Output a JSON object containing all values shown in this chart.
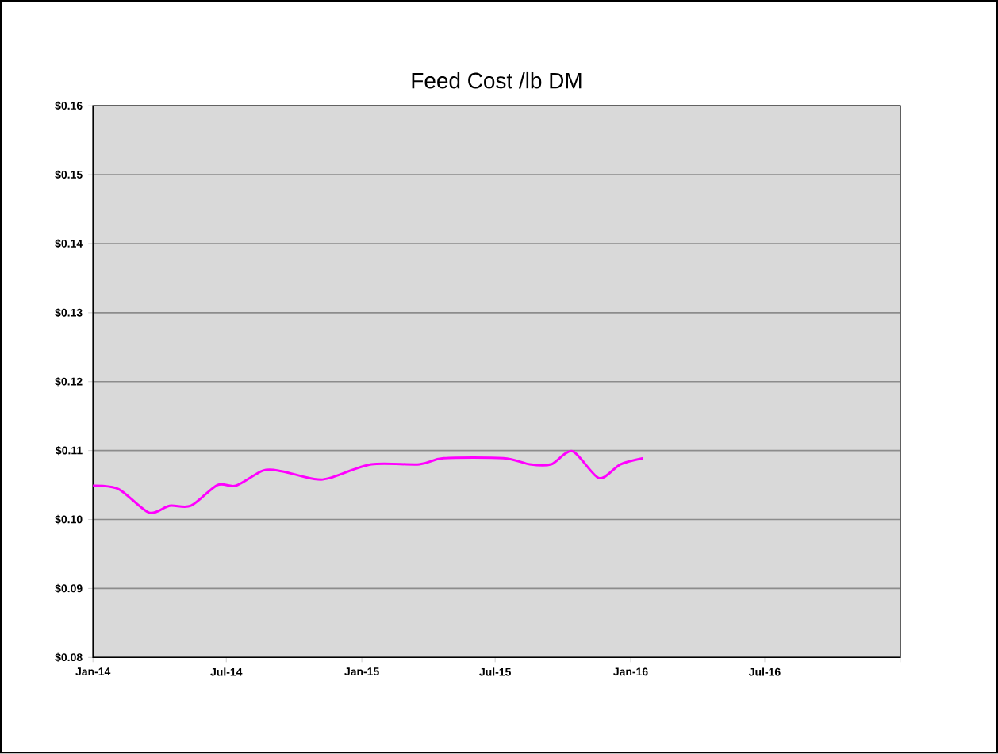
{
  "chart_data": {
    "type": "line",
    "title": "Feed Cost /lb DM",
    "x": [
      "2014-01-01",
      "2014-02-05",
      "2014-03-18",
      "2014-04-15",
      "2014-05-14",
      "2014-06-19",
      "2014-07-14",
      "2014-08-20",
      "2014-09-14",
      "2014-10-27",
      "2014-11-18",
      "2015-01-14",
      "2015-03-20",
      "2015-04-22",
      "2015-07-12",
      "2015-08-17",
      "2015-09-15",
      "2015-10-14",
      "2015-11-19",
      "2015-12-18",
      "2016-01-18"
    ],
    "series": [
      {
        "color": "#ff00ff",
        "values": [
          0.1049,
          0.1044,
          0.101,
          0.102,
          0.102,
          0.105,
          0.1049,
          0.1071,
          0.107,
          0.1059,
          0.106,
          0.108,
          0.108,
          0.1089,
          0.1089,
          0.108,
          0.108,
          0.1099,
          0.106,
          0.108,
          0.1089
        ]
      }
    ],
    "xlim": [
      "2014-01-01",
      "2017-01-01"
    ],
    "xticks": [
      {
        "value": "2014-01-01",
        "label": "Jan-14"
      },
      {
        "value": "2014-07-01",
        "label": "Jul-14"
      },
      {
        "value": "2015-01-01",
        "label": "Jan-15"
      },
      {
        "value": "2015-07-01",
        "label": "Jul-15"
      },
      {
        "value": "2016-01-01",
        "label": "Jan-16"
      },
      {
        "value": "2016-07-01",
        "label": "Jul-16"
      },
      {
        "value": "2017-01-01",
        "label": null
      }
    ],
    "ylim": [
      0.08,
      0.16
    ],
    "yticks": [
      {
        "value": 0.08,
        "label": "$0.08"
      },
      {
        "value": 0.09,
        "label": "$0.09"
      },
      {
        "value": 0.1,
        "label": "$0.10"
      },
      {
        "value": 0.11,
        "label": "$0.11"
      },
      {
        "value": 0.12,
        "label": "$0.12"
      },
      {
        "value": 0.13,
        "label": "$0.13"
      },
      {
        "value": 0.14,
        "label": "$0.14"
      },
      {
        "value": 0.15,
        "label": "$0.15"
      },
      {
        "value": 0.16,
        "label": "$0.16"
      }
    ],
    "grid": "y"
  }
}
